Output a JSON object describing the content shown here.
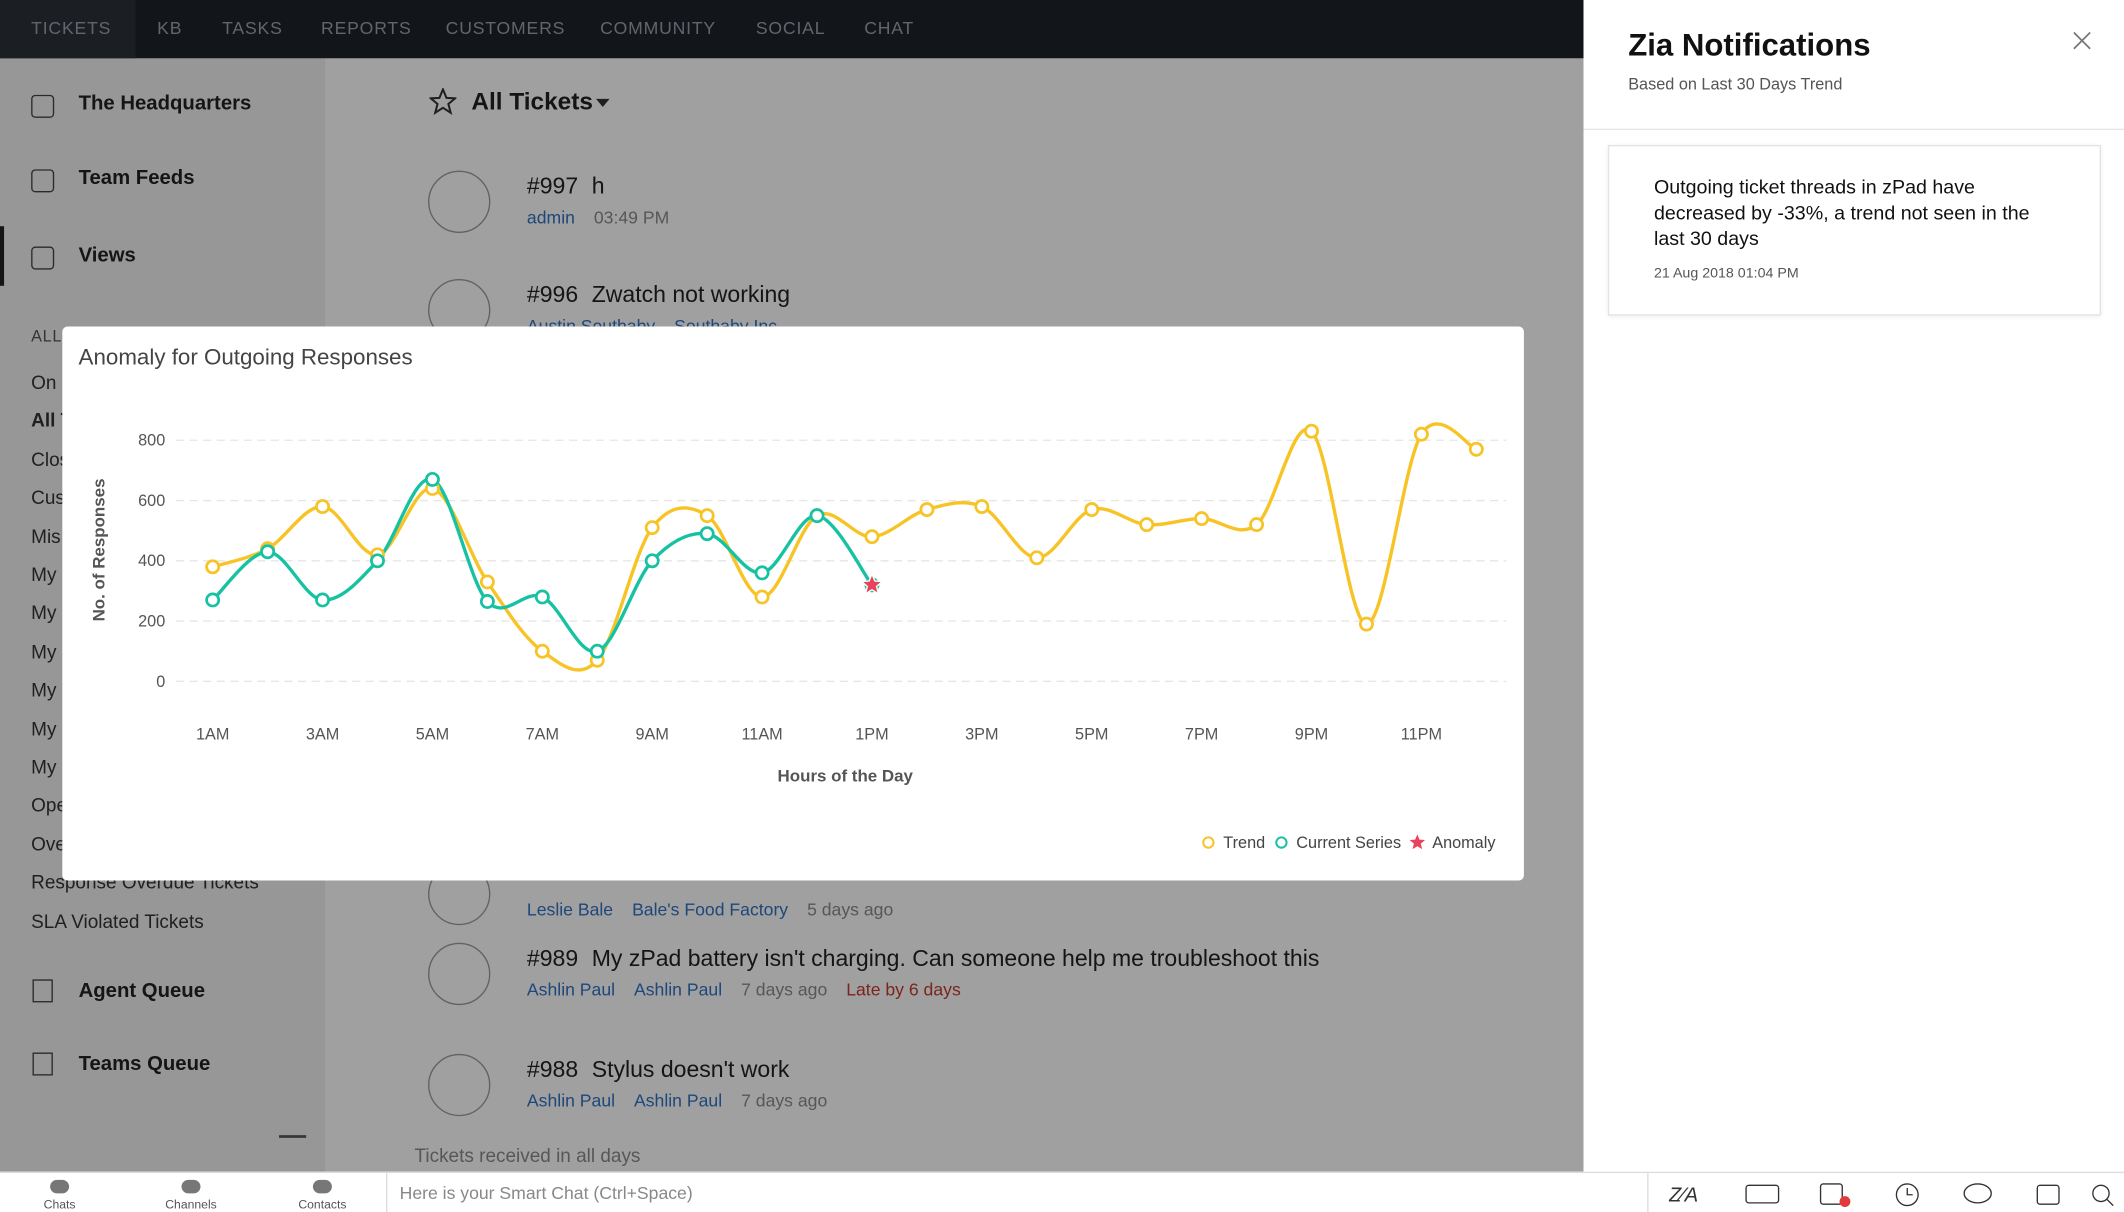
{
  "nav": {
    "tabs": [
      "TICKETS",
      "KB",
      "TASKS",
      "REPORTS",
      "CUSTOMERS",
      "COMMUNITY",
      "SOCIAL",
      "CHAT"
    ]
  },
  "sidebar": {
    "items": [
      "The Headquarters",
      "Team Feeds",
      "Views"
    ],
    "section": "ALL",
    "views": [
      "On",
      "All T",
      "Clos",
      "Cus",
      "Mis",
      "My",
      "My",
      "My",
      "My",
      "My",
      "My",
      "Ope",
      "Ove",
      "Response Overdue Tickets",
      "SLA Violated Tickets"
    ],
    "queues": [
      "Agent Queue",
      "Teams Queue"
    ]
  },
  "main": {
    "view": "All Tickets",
    "tickets": [
      {
        "number": "#997",
        "subject": "h",
        "contact": "admin",
        "time": "03:49 PM"
      },
      {
        "number": "#996",
        "subject": "Zwatch not working",
        "contact": "Austin Southaby",
        "account": "Southaby Inc"
      },
      {
        "contact": "Leslie Bale",
        "account": "Bale's Food Factory",
        "time": "5 days ago"
      },
      {
        "number": "#989",
        "subject": "My zPad battery isn't charging. Can someone help me troubleshoot this",
        "contact": "Ashlin Paul",
        "account": "Ashlin Paul",
        "time": "7 days ago",
        "status": "Late by 6 days"
      },
      {
        "number": "#988",
        "subject": "Stylus doesn't work",
        "contact": "Ashlin Paul",
        "account": "Ashlin Paul",
        "time": "7 days ago"
      }
    ],
    "footer": "Tickets received in all days"
  },
  "modal": {
    "chart_data": {
      "type": "line",
      "title": "Anomaly for Outgoing Responses",
      "x_label": "Hours of the Day",
      "y_label": "No. of Responses",
      "categories": [
        "1AM",
        null,
        "3AM",
        null,
        "5AM",
        null,
        "7AM",
        null,
        "9AM",
        null,
        "11AM",
        null,
        "1PM",
        null,
        "3PM",
        null,
        "5PM",
        null,
        "7PM",
        null,
        "9PM",
        null,
        "11PM",
        null
      ],
      "series": [
        {
          "name": "Trend",
          "color": "#f7c325",
          "marker": "circle",
          "values": [
            380,
            440,
            580,
            420,
            640,
            330,
            100,
            70,
            510,
            550,
            280,
            550,
            480,
            570,
            580,
            410,
            570,
            520,
            540,
            520,
            830,
            190,
            820,
            770
          ]
        },
        {
          "name": "Current Series",
          "color": "#17c2a3",
          "marker": "circle",
          "values": [
            270,
            430,
            270,
            400,
            670,
            265,
            280,
            100,
            400,
            490,
            360,
            550,
            320,
            null,
            null,
            null,
            null,
            null,
            null,
            null,
            null,
            null,
            null,
            null
          ]
        },
        {
          "name": "Anomaly",
          "color": "#e8435a",
          "marker": "star",
          "values": [
            null,
            null,
            null,
            null,
            null,
            null,
            null,
            null,
            null,
            null,
            null,
            null,
            320,
            null,
            null,
            null,
            null,
            null,
            null,
            null,
            null,
            null,
            null,
            null
          ]
        }
      ],
      "ylim": [
        0,
        800
      ],
      "yticks": [
        0,
        200,
        400,
        600,
        800
      ],
      "grid": true,
      "legend": "bottom-right"
    }
  },
  "zia": {
    "title": "Zia Notifications",
    "subtitle": "Based on Last 30 Days Trend",
    "card": {
      "text": "Outgoing ticket threads in zPad have decreased by -33%, a trend not seen in the last 30 days",
      "date": "21 Aug 2018 01:04 PM"
    }
  },
  "bottom": {
    "tabs": [
      "Chats",
      "Channels",
      "Contacts"
    ],
    "placeholder": "Here is your Smart Chat (Ctrl+Space)"
  }
}
